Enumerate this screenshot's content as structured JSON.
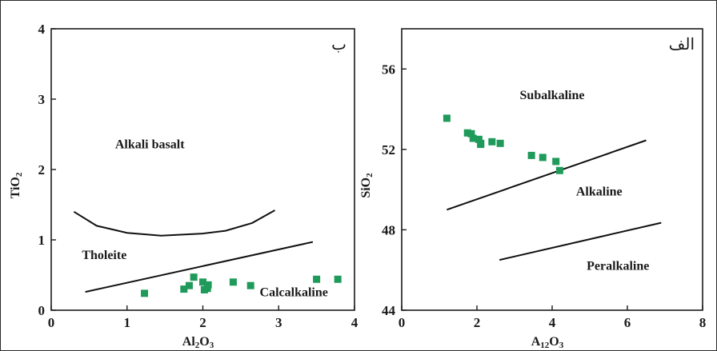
{
  "chart_data": [
    {
      "type": "scatter",
      "panel_label": "ب",
      "xlabel": "Al2O3",
      "ylabel": "TiO2",
      "xlim": [
        0,
        4
      ],
      "ylim": [
        0,
        4
      ],
      "xticks": [
        "0",
        "1",
        "2",
        "3",
        "4"
      ],
      "yticks": [
        "0",
        "1",
        "2",
        "3",
        "4"
      ],
      "marker_color": "#1f9a5a",
      "points": [
        {
          "x": 1.23,
          "y": 0.24
        },
        {
          "x": 1.75,
          "y": 0.3
        },
        {
          "x": 1.82,
          "y": 0.35
        },
        {
          "x": 1.88,
          "y": 0.47
        },
        {
          "x": 2.0,
          "y": 0.4
        },
        {
          "x": 2.02,
          "y": 0.29
        },
        {
          "x": 2.07,
          "y": 0.36
        },
        {
          "x": 2.06,
          "y": 0.31
        },
        {
          "x": 2.4,
          "y": 0.4
        },
        {
          "x": 2.63,
          "y": 0.35
        },
        {
          "x": 3.5,
          "y": 0.44
        },
        {
          "x": 3.78,
          "y": 0.44
        }
      ],
      "lines": [
        {
          "name": "upper",
          "points": [
            [
              0.3,
              1.4
            ],
            [
              0.6,
              1.2
            ],
            [
              1.0,
              1.1
            ],
            [
              1.45,
              1.06
            ],
            [
              2.0,
              1.09
            ],
            [
              2.3,
              1.13
            ],
            [
              2.65,
              1.24
            ],
            [
              2.95,
              1.42
            ]
          ]
        },
        {
          "name": "lower",
          "points": [
            [
              0.45,
              0.26
            ],
            [
              3.45,
              0.97
            ]
          ]
        }
      ],
      "fields": [
        {
          "text": "Alkali basalt",
          "x": 1.3,
          "y": 2.3
        },
        {
          "text": "Tholeite",
          "x": 0.7,
          "y": 0.73
        },
        {
          "text": "Calcalkaline",
          "x": 3.2,
          "y": 0.2
        }
      ]
    },
    {
      "type": "scatter",
      "panel_label": "الف",
      "xlabel": "A12O3",
      "ylabel": "SiO2",
      "xlim": [
        0,
        8
      ],
      "ylim": [
        44,
        58
      ],
      "xticks": [
        "0",
        "2",
        "4",
        "6",
        "8"
      ],
      "yticks": [
        "44",
        "48",
        "52",
        "56"
      ],
      "marker_color": "#1f9a5a",
      "points": [
        {
          "x": 1.2,
          "y": 53.55
        },
        {
          "x": 1.75,
          "y": 52.82
        },
        {
          "x": 1.85,
          "y": 52.78
        },
        {
          "x": 1.9,
          "y": 52.55
        },
        {
          "x": 2.05,
          "y": 52.5
        },
        {
          "x": 2.1,
          "y": 52.3
        },
        {
          "x": 2.1,
          "y": 52.25
        },
        {
          "x": 2.4,
          "y": 52.38
        },
        {
          "x": 2.62,
          "y": 52.3
        },
        {
          "x": 3.45,
          "y": 51.7
        },
        {
          "x": 3.75,
          "y": 51.6
        },
        {
          "x": 4.1,
          "y": 51.4
        },
        {
          "x": 4.2,
          "y": 50.95
        }
      ],
      "lines": [
        {
          "name": "subalkaline-alkaline",
          "points": [
            [
              1.2,
              49.0
            ],
            [
              6.5,
              52.45
            ]
          ]
        },
        {
          "name": "alkaline-peralkaline",
          "points": [
            [
              2.6,
              46.5
            ],
            [
              6.9,
              48.35
            ]
          ]
        }
      ],
      "fields": [
        {
          "text": "Subalkaline",
          "x": 4.0,
          "y": 54.5
        },
        {
          "text": "Alkaline",
          "x": 5.25,
          "y": 49.7
        },
        {
          "text": "Peralkaline",
          "x": 5.75,
          "y": 46.0
        }
      ]
    }
  ]
}
